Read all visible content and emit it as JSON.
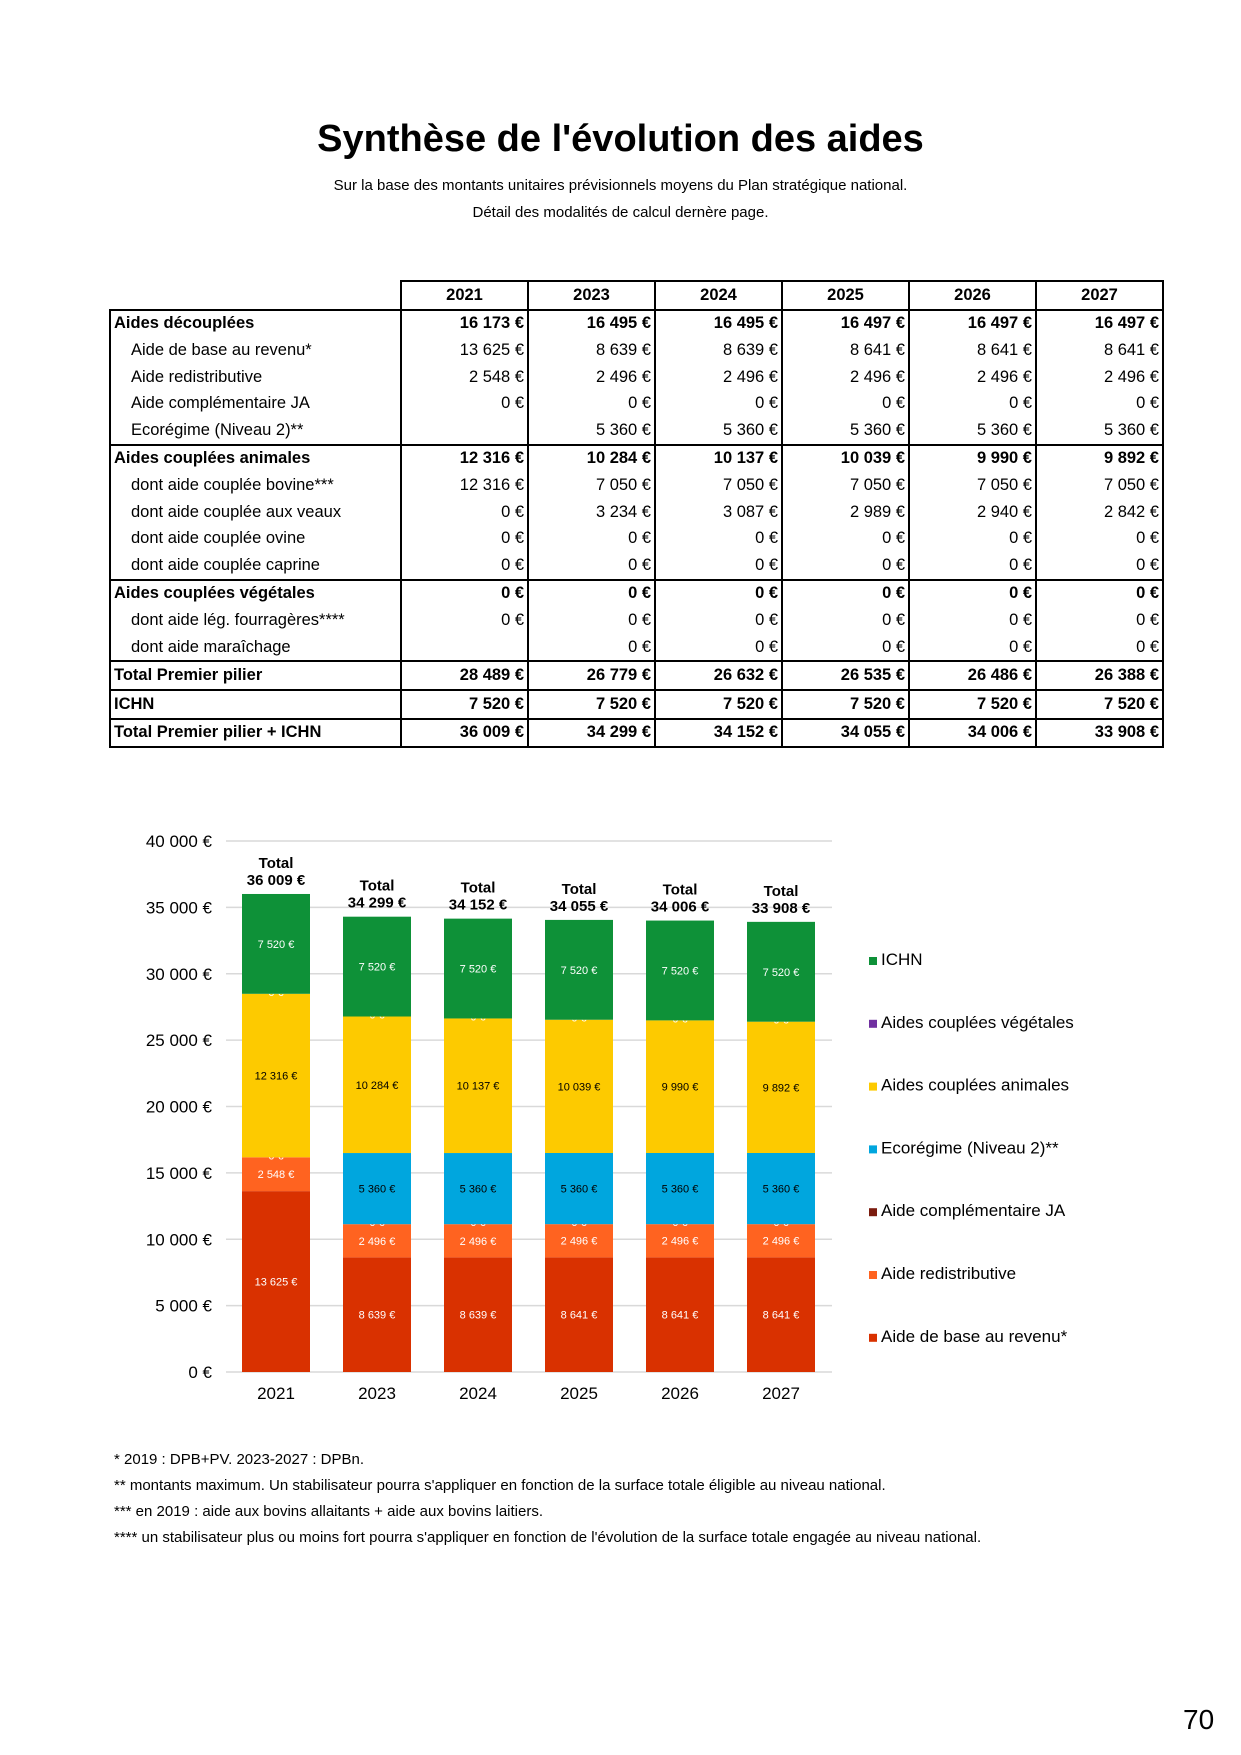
{
  "title": "Synthèse de l'évolution des aides",
  "subtitle_lines": [
    "Sur la base des montants unitaires prévisionnels moyens du Plan stratégique national.",
    "Détail des modalités de calcul dernère page."
  ],
  "table": {
    "columns": [
      "2021",
      "2023",
      "2024",
      "2025",
      "2026",
      "2027"
    ],
    "rows": [
      {
        "label": "Aides découplées",
        "bold": true,
        "values": [
          "16 173 €",
          "16 495 €",
          "16 495 €",
          "16 497 €",
          "16 497 €",
          "16 497 €"
        ]
      },
      {
        "label": "Aide de base au revenu*",
        "values": [
          "13 625 €",
          "8 639 €",
          "8 639 €",
          "8 641 €",
          "8 641 €",
          "8 641 €"
        ]
      },
      {
        "label": "Aide redistributive",
        "values": [
          "2 548 €",
          "2 496 €",
          "2 496 €",
          "2 496 €",
          "2 496 €",
          "2 496 €"
        ]
      },
      {
        "label": "Aide complémentaire JA",
        "values": [
          "0 €",
          "0 €",
          "0 €",
          "0 €",
          "0 €",
          "0 €"
        ]
      },
      {
        "label": "Ecorégime (Niveau 2)**",
        "values": [
          "",
          "5 360 €",
          "5 360 €",
          "5 360 €",
          "5 360 €",
          "5 360 €"
        ]
      },
      {
        "label": "Aides couplées animales",
        "bold": true,
        "values": [
          "12 316 €",
          "10 284 €",
          "10 137 €",
          "10 039 €",
          "9 990 €",
          "9 892 €"
        ]
      },
      {
        "label": "dont aide couplée bovine***",
        "values": [
          "12 316 €",
          "7 050 €",
          "7 050 €",
          "7 050 €",
          "7 050 €",
          "7 050 €"
        ]
      },
      {
        "label": "dont aide couplée aux veaux",
        "values": [
          "0 €",
          "3 234 €",
          "3 087 €",
          "2 989 €",
          "2 940 €",
          "2 842 €"
        ]
      },
      {
        "label": "dont aide couplée ovine",
        "values": [
          "0 €",
          "0 €",
          "0 €",
          "0 €",
          "0 €",
          "0 €"
        ]
      },
      {
        "label": "dont aide couplée caprine",
        "values": [
          "0 €",
          "0 €",
          "0 €",
          "0 €",
          "0 €",
          "0 €"
        ]
      },
      {
        "label": "Aides couplées végétales",
        "bold": true,
        "values": [
          "0 €",
          "0 €",
          "0 €",
          "0 €",
          "0 €",
          "0 €"
        ]
      },
      {
        "label": "dont aide lég. fourragères****",
        "values": [
          "0 €",
          "0 €",
          "0 €",
          "0 €",
          "0 €",
          "0 €"
        ]
      },
      {
        "label": "dont aide maraîchage",
        "values": [
          "",
          "0 €",
          "0 €",
          "0 €",
          "0 €",
          "0 €"
        ]
      },
      {
        "label": "Total Premier pilier",
        "bold": true,
        "values": [
          "28 489 €",
          "26 779 €",
          "26 632 €",
          "26 535 €",
          "26 486 €",
          "26 388 €"
        ]
      },
      {
        "label": "ICHN",
        "bold": true,
        "values": [
          "7 520 €",
          "7 520 €",
          "7 520 €",
          "7 520 €",
          "7 520 €",
          "7 520 €"
        ]
      },
      {
        "label": "Total Premier pilier + ICHN",
        "bold": true,
        "values": [
          "36 009 €",
          "34 299 €",
          "34 152 €",
          "34 055 €",
          "34 006 €",
          "33 908 €"
        ]
      }
    ]
  },
  "chart_data": {
    "type": "bar",
    "stacked": true,
    "categories": [
      "2021",
      "2023",
      "2024",
      "2025",
      "2026",
      "2027"
    ],
    "ylim": [
      0,
      40000
    ],
    "yticks": [
      "0 €",
      "5 000 €",
      "10 000 €",
      "15 000 €",
      "20 000 €",
      "25 000 €",
      "30 000 €",
      "35 000 €",
      "40 000 €"
    ],
    "grid": true,
    "legend": "right",
    "total_prefix": "Total",
    "totals": [
      "36 009 €",
      "34 299 €",
      "34 152 €",
      "34 055 €",
      "34 006 €",
      "33 908 €"
    ],
    "series": [
      {
        "name": "Aide de base au revenu*",
        "color": "#d93100",
        "label_color": "#ffffff",
        "values": [
          13625,
          8639,
          8639,
          8641,
          8641,
          8641
        ],
        "labels": [
          "13 625 €",
          "8 639 €",
          "8 639 €",
          "8 641 €",
          "8 641 €",
          "8 641 €"
        ]
      },
      {
        "name": "Aide redistributive",
        "color": "#ff6320",
        "label_color": "#ffffff",
        "values": [
          2548,
          2496,
          2496,
          2496,
          2496,
          2496
        ],
        "labels": [
          "2 548 €",
          "2 496 €",
          "2 496 €",
          "2 496 €",
          "2 496 €",
          "2 496 €"
        ]
      },
      {
        "name": "Aide complémentaire JA",
        "color": "#7b1c0e",
        "label_color": "#ffffff",
        "values": [
          0,
          0,
          0,
          0,
          0,
          0
        ],
        "labels": [
          "0 €",
          "0 €",
          "0 €",
          "0 €",
          "0 €",
          "0 €"
        ]
      },
      {
        "name": "Ecorégime (Niveau 2)**",
        "color": "#00a6de",
        "label_color": "#000000",
        "values": [
          null,
          5360,
          5360,
          5360,
          5360,
          5360
        ],
        "labels": [
          "",
          "5 360 €",
          "5 360 €",
          "5 360 €",
          "5 360 €",
          "5 360 €"
        ]
      },
      {
        "name": "Aides couplées animales",
        "color": "#fdca00",
        "label_color": "#000000",
        "values": [
          12316,
          10284,
          10137,
          10039,
          9990,
          9892
        ],
        "labels": [
          "12 316 €",
          "10 284 €",
          "10 137 €",
          "10 039 €",
          "9 990 €",
          "9 892 €"
        ]
      },
      {
        "name": "Aides couplées végétales",
        "color": "#7030a0",
        "label_color": "#ffffff",
        "values": [
          0,
          0,
          0,
          0,
          0,
          0
        ],
        "labels": [
          "0 €",
          "0 €",
          "0 €",
          "0 €",
          "0 €",
          "0 €"
        ]
      },
      {
        "name": "ICHN",
        "color": "#0e9138",
        "label_color": "#ffffff",
        "values": [
          7520,
          7520,
          7520,
          7520,
          7520,
          7520
        ],
        "labels": [
          "7 520 €",
          "7 520 €",
          "7 520 €",
          "7 520 €",
          "7 520 €",
          "7 520 €"
        ]
      }
    ]
  },
  "footnotes": [
    "* 2019 : DPB+PV. 2023-2027 : DPBn.",
    "** montants maximum. Un stabilisateur pourra s'appliquer en fonction de la surface totale éligible au niveau national.",
    "*** en 2019 : aide aux bovins allaitants + aide aux bovins laitiers.",
    "**** un stabilisateur plus ou moins fort pourra s'appliquer en fonction de l'évolution de la surface totale engagée au niveau national."
  ],
  "page_number": "70"
}
